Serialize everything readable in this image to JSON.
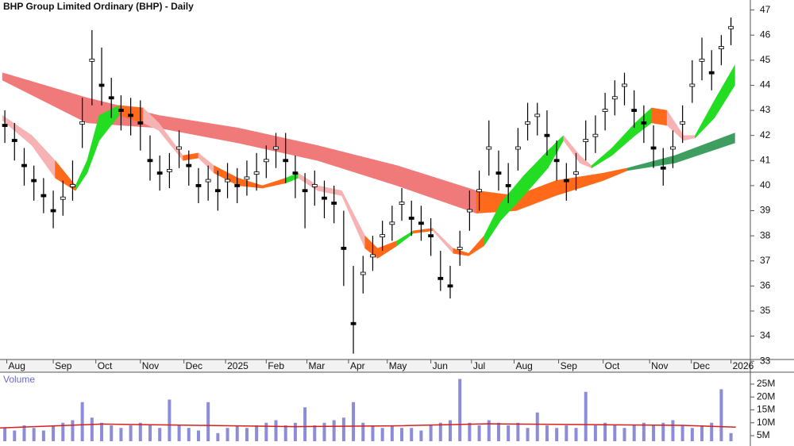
{
  "chart_data": {
    "type": "candlestick",
    "title": "BHP Group Limited Ordinary (BHP) - Daily",
    "xlim": [
      -0.5,
      77
    ],
    "xticks": [
      {
        "value": 0.2,
        "label": "Aug"
      },
      {
        "value": 5,
        "label": "Sep"
      },
      {
        "value": 9.4,
        "label": "Oct"
      },
      {
        "value": 14,
        "label": "Nov"
      },
      {
        "value": 18.5,
        "label": "Dec"
      },
      {
        "value": 22.8,
        "label": "2025"
      },
      {
        "value": 27,
        "label": "Feb"
      },
      {
        "value": 31.2,
        "label": "Mar"
      },
      {
        "value": 35.5,
        "label": "Apr"
      },
      {
        "value": 39.5,
        "label": "May"
      },
      {
        "value": 44,
        "label": "Jun"
      },
      {
        "value": 48.2,
        "label": "Jul"
      },
      {
        "value": 52.6,
        "label": "Aug"
      },
      {
        "value": 57.2,
        "label": "Sep"
      },
      {
        "value": 61.8,
        "label": "Oct"
      },
      {
        "value": 66.6,
        "label": "Nov"
      },
      {
        "value": 70.9,
        "label": "Dec"
      },
      {
        "value": 75,
        "label": "2026"
      }
    ],
    "ylim": [
      33.1,
      47.4
    ],
    "yticks": [
      33,
      34,
      35,
      36,
      37,
      38,
      39,
      40,
      41,
      42,
      43,
      44,
      45,
      46,
      47
    ],
    "x": [
      0,
      1,
      2,
      3,
      4,
      5,
      6,
      7,
      8,
      9,
      10,
      11,
      12,
      13,
      14,
      15,
      16,
      17,
      18,
      19,
      20,
      21,
      22,
      23,
      24,
      25,
      26,
      27,
      28,
      29,
      30,
      31,
      32,
      33,
      34,
      35,
      36,
      37,
      38,
      39,
      40,
      41,
      42,
      43,
      44,
      45,
      46,
      47,
      48,
      49,
      50,
      51,
      52,
      53,
      54,
      55,
      56,
      57,
      58,
      59,
      60,
      61,
      62,
      63,
      64,
      65,
      66,
      67,
      68,
      69,
      70,
      71,
      72,
      73,
      74,
      75
    ],
    "high": [
      43.0,
      42.5,
      41.5,
      40.8,
      40.3,
      39.8,
      40.2,
      41.0,
      43.5,
      46.2,
      45.5,
      44.3,
      43.6,
      43.5,
      43.4,
      42.0,
      41.2,
      41.3,
      42.2,
      41.4,
      40.7,
      40.8,
      40.6,
      40.9,
      40.7,
      41.0,
      41.3,
      41.6,
      42.1,
      42.1,
      41.2,
      40.5,
      40.6,
      40.2,
      40.0,
      39.0,
      36.8,
      37.2,
      38.0,
      38.6,
      39.2,
      39.9,
      39.4,
      39.2,
      38.7,
      37.4,
      36.8,
      38.2,
      39.8,
      40.6,
      42.6,
      41.4,
      40.9,
      42.3,
      43.3,
      43.3,
      43.0,
      41.8,
      40.9,
      41.3,
      42.6,
      42.8,
      43.7,
      44.2,
      44.5,
      43.8,
      43.2,
      42.4,
      41.5,
      42.2,
      43.2,
      45.0,
      45.9,
      45.4,
      46.0,
      46.7
    ],
    "low": [
      41.7,
      41.0,
      40.0,
      39.4,
      38.9,
      38.3,
      38.8,
      39.4,
      41.5,
      43.2,
      43.2,
      42.7,
      42.2,
      42.0,
      41.4,
      40.2,
      39.8,
      39.9,
      40.7,
      40.0,
      39.3,
      39.4,
      39.0,
      39.5,
      39.3,
      39.6,
      39.8,
      40.3,
      40.7,
      40.1,
      39.5,
      38.3,
      39.2,
      38.7,
      38.5,
      36.0,
      33.3,
      35.7,
      36.6,
      37.4,
      37.8,
      38.6,
      38.0,
      37.8,
      37.2,
      35.8,
      35.5,
      36.8,
      38.2,
      39.0,
      40.4,
      39.8,
      39.3,
      40.6,
      41.8,
      42.0,
      41.2,
      40.2,
      39.4,
      39.8,
      41.0,
      41.3,
      42.2,
      42.8,
      43.2,
      42.3,
      41.7,
      40.7,
      40.0,
      40.7,
      41.7,
      43.3,
      44.2,
      43.8,
      44.8,
      45.6
    ],
    "close": [
      42.4,
      41.8,
      40.8,
      40.2,
      39.6,
      39.0,
      39.5,
      40.0,
      42.5,
      45.0,
      44.0,
      43.5,
      43.0,
      42.8,
      42.5,
      41.0,
      40.5,
      40.6,
      41.5,
      40.8,
      40.0,
      40.2,
      39.8,
      40.2,
      40.0,
      40.3,
      40.5,
      41.0,
      41.5,
      41.0,
      40.5,
      39.8,
      40.0,
      39.5,
      39.3,
      37.5,
      34.5,
      36.5,
      37.2,
      38.0,
      38.5,
      39.3,
      38.7,
      38.5,
      38.0,
      36.3,
      36.0,
      37.5,
      39.0,
      39.8,
      41.5,
      40.5,
      40.0,
      41.5,
      42.5,
      42.8,
      42.0,
      41.0,
      40.2,
      40.5,
      41.8,
      42.0,
      43.0,
      43.5,
      44.0,
      43.0,
      42.5,
      41.5,
      40.7,
      41.5,
      42.5,
      44.0,
      45.0,
      44.5,
      45.5,
      46.3
    ],
    "slow_band": {
      "x": [
        -0.25,
        8.5,
        15.9,
        24.1,
        32.3,
        40.5,
        48.7,
        52.8,
        56.9,
        61.8,
        64.3,
        69.2,
        75.4
      ],
      "upper": [
        44.5,
        43.5,
        42.8,
        42.3,
        41.6,
        40.8,
        39.8,
        39.6,
        40.2,
        40.5,
        40.7,
        41.2,
        42.1
      ],
      "lower": [
        44.2,
        42.5,
        42.3,
        41.7,
        41.0,
        40.0,
        38.9,
        39.0,
        39.6,
        40.2,
        40.6,
        40.9,
        41.7
      ],
      "colors": [
        "#f07a7a",
        "#f07a7a",
        "#f07a7a",
        "#f07a7a",
        "#f07a7a",
        "#f07a7a",
        "#f07a7a",
        "#ff6a1a",
        "#ff6a1a",
        "#ff6a1a",
        "#ff6a1a",
        "#3d9e60",
        "#3d9e60"
      ]
    },
    "fast_band": {
      "x": [
        -0.25,
        2.8,
        5.2,
        7.3,
        8.5,
        9.75,
        11.8,
        14.3,
        15.9,
        18.4,
        20,
        21.6,
        24.1,
        26.6,
        29,
        30.3,
        32.3,
        34.8,
        37.2,
        38.5,
        40.5,
        42.2,
        44.2,
        46.3,
        47.9,
        49.5,
        51.2,
        53.6,
        56.1,
        57.7,
        59.4,
        60.6,
        62.7,
        65.1,
        66.8,
        68.4,
        70.1,
        71.3,
        73.3,
        75.4
      ],
      "upper": [
        42.8,
        42.0,
        41.0,
        40.0,
        41.0,
        42.8,
        43.2,
        43.1,
        42.5,
        41.2,
        41.3,
        40.8,
        40.3,
        40.0,
        40.3,
        40.5,
        40.0,
        39.8,
        38.0,
        37.5,
        37.8,
        38.2,
        38.3,
        37.5,
        37.3,
        38.0,
        39.3,
        40.4,
        41.4,
        42.0,
        41.2,
        40.8,
        41.5,
        42.5,
        43.1,
        43.0,
        42.0,
        42.0,
        43.4,
        44.8
      ],
      "lower": [
        42.6,
        41.6,
        40.3,
        39.8,
        40.5,
        41.8,
        42.8,
        42.5,
        42.2,
        41.0,
        41.1,
        40.5,
        40.0,
        39.9,
        40.1,
        40.3,
        39.8,
        39.6,
        37.5,
        37.1,
        37.6,
        38.1,
        38.2,
        37.3,
        37.2,
        37.6,
        38.6,
        39.6,
        40.7,
        41.8,
        40.9,
        40.7,
        41.2,
        42.0,
        42.5,
        42.4,
        41.8,
        41.9,
        42.7,
        44.0
      ],
      "colors": [
        "#f7b3b3",
        "#f7b3b3",
        "#f7b3b3",
        "#ff6a1a",
        "#22dd22",
        "#22dd22",
        "#22dd22",
        "#ff6a1a",
        "#f7b3b3",
        "#f7b3b3",
        "#ff6a1a",
        "#f7b3b3",
        "#ff6a1a",
        "#ff6a1a",
        "#ff6a1a",
        "#22dd22",
        "#f7b3b3",
        "#f7b3b3",
        "#f7b3b3",
        "#ff6a1a",
        "#ff6a1a",
        "#22dd22",
        "#ff6a1a",
        "#f7b3b3",
        "#ff6a1a",
        "#ff6a1a",
        "#22dd22",
        "#22dd22",
        "#22dd22",
        "#22dd22",
        "#f7b3b3",
        "#f7b3b3",
        "#22dd22",
        "#22dd22",
        "#22dd22",
        "#ff6a1a",
        "#f7b3b3",
        "#f7b3b3",
        "#22dd22",
        "#22dd22"
      ]
    },
    "volume": {
      "label": "Volume",
      "color": "#8c8cd8",
      "values": [
        8,
        7,
        9,
        8,
        7,
        9,
        10,
        11,
        18,
        12,
        10,
        9,
        8,
        9,
        10,
        9,
        8,
        19,
        9,
        8,
        7,
        18,
        6,
        8,
        9,
        8,
        9,
        10,
        11,
        9,
        10,
        16,
        9,
        10,
        11,
        12,
        18,
        10,
        9,
        8,
        9,
        8,
        8,
        7,
        9,
        10,
        11,
        27,
        10,
        9,
        11,
        10,
        9,
        10,
        8,
        14,
        9,
        8,
        9,
        8,
        22,
        9,
        10,
        9,
        8,
        9,
        10,
        9,
        10,
        11,
        9,
        8,
        9,
        10,
        23,
        6
      ],
      "ylim": [
        2.85,
        29.3
      ],
      "yticks": [
        {
          "value": 5,
          "label": "5M"
        },
        {
          "value": 10,
          "label": "10M"
        },
        {
          "value": 15,
          "label": "15M"
        },
        {
          "value": 20,
          "label": "20M"
        },
        {
          "value": 25,
          "label": "25M"
        }
      ],
      "ma": {
        "color": "#d42020",
        "x": [
          -0.5,
          10,
          20,
          30,
          40,
          50,
          60,
          70,
          75.5
        ],
        "values": [
          8.0,
          9.5,
          9.0,
          8.5,
          8.8,
          9.6,
          9.3,
          9.0,
          8.3
        ]
      }
    }
  }
}
